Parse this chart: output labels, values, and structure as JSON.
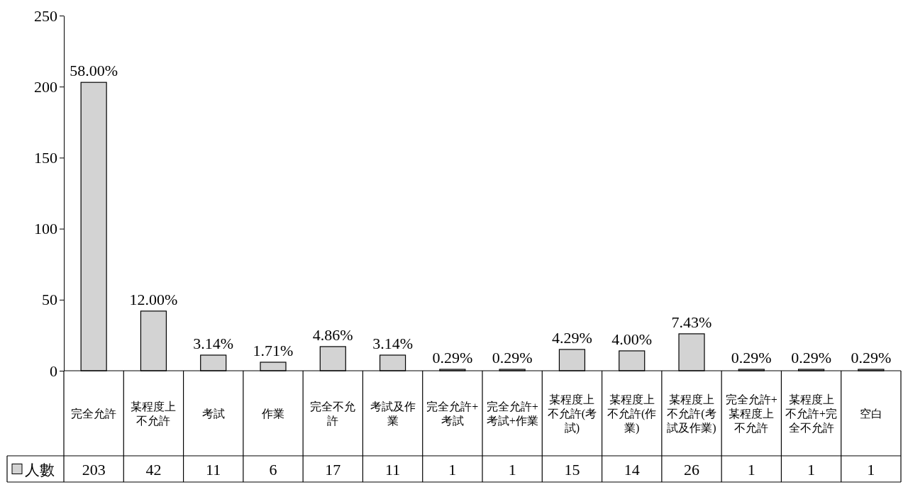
{
  "chart_data": {
    "type": "bar",
    "categories": [
      "完全允許",
      "某程度上不允許",
      "考試",
      "作業",
      "完全不允許",
      "考試及作業",
      "完全允許+考試",
      "完全允許+考試+作業",
      "某程度上不允許(考試)",
      "某程度上不允許(作業)",
      "某程度上不允許(考試及作業)",
      "完全允許+某程度上不允許",
      "某程度上不允許+完全不允許",
      "空白"
    ],
    "series": [
      {
        "name": "人數",
        "color": "#d3d3d3",
        "values": [
          203,
          42,
          11,
          6,
          17,
          11,
          1,
          1,
          15,
          14,
          26,
          1,
          1,
          1
        ],
        "value_labels": [
          "203",
          "42",
          "11",
          "6",
          "17",
          "11",
          "1",
          "1",
          "15",
          "14",
          "26",
          "1",
          "1",
          "1"
        ]
      }
    ],
    "annotations": [
      {
        "text": "58.00%",
        "x": "完全允許",
        "y": 203
      },
      {
        "text": "12.00%",
        "x": "某程度上不允許",
        "y": 42
      },
      {
        "text": "3.14%",
        "x": "考試",
        "y": 11
      },
      {
        "text": "1.71%",
        "x": "作業",
        "y": 6
      },
      {
        "text": "4.86%",
        "x": "完全不允許",
        "y": 17
      },
      {
        "text": "3.14%",
        "x": "考試及作業",
        "y": 11
      },
      {
        "text": "0.29%",
        "x": "完全允許+考試",
        "y": 1
      },
      {
        "text": "0.29%",
        "x": "完全允許+考試+作業",
        "y": 1
      },
      {
        "text": "4.29%",
        "x": "某程度上不允許(考試)",
        "y": 15
      },
      {
        "text": "4.00%",
        "x": "某程度上不允許(作業)",
        "y": 14
      },
      {
        "text": "7.43%",
        "x": "某程度上不允許(考試及作業)",
        "y": 26
      },
      {
        "text": "0.29%",
        "x": "完全允許+某程度上不允許",
        "y": 1
      },
      {
        "text": "0.29%",
        "x": "某程度上不允許+完全不允許",
        "y": 1
      },
      {
        "text": "0.29%",
        "x": "空白",
        "y": 1
      }
    ],
    "ylim": [
      0,
      250
    ],
    "yticks": [
      0,
      50,
      100,
      150,
      200,
      250
    ],
    "legend": "bottom left",
    "grid": false
  }
}
